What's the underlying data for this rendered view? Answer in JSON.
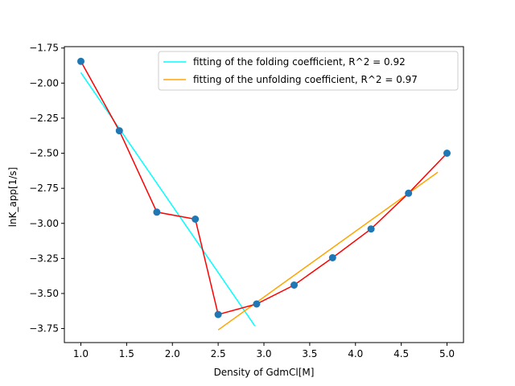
{
  "chart_data": {
    "type": "line",
    "xlabel": "Density of GdmCl[M]",
    "ylabel": "lnK_app[1/s]",
    "xlim": [
      0.82,
      5.18
    ],
    "ylim": [
      -3.85,
      -1.74
    ],
    "xticks": [
      1.0,
      1.5,
      2.0,
      2.5,
      3.0,
      3.5,
      4.0,
      4.5,
      5.0
    ],
    "xtick_labels": [
      "1.0",
      "1.5",
      "2.0",
      "2.5",
      "3.0",
      "3.5",
      "4.0",
      "4.5",
      "5.0"
    ],
    "yticks": [
      -1.75,
      -2.0,
      -2.25,
      -2.5,
      -2.75,
      -3.0,
      -3.25,
      -3.5,
      -3.75
    ],
    "ytick_labels": [
      "−1.75",
      "−2.00",
      "−2.25",
      "−2.50",
      "−2.75",
      "−3.00",
      "−3.25",
      "−3.50",
      "−3.75"
    ],
    "grid": false,
    "legend_position": "top-right",
    "series": [
      {
        "name": "",
        "kind": "line+markers",
        "color": "#ff0000",
        "marker_color": "#1f77b4",
        "x": [
          1.0,
          1.42,
          1.83,
          2.25,
          2.5,
          2.92,
          3.33,
          3.75,
          4.17,
          4.58,
          5.0
        ],
        "y": [
          -1.845,
          -2.34,
          -2.92,
          -2.97,
          -3.65,
          -3.575,
          -3.44,
          -3.245,
          -3.04,
          -2.785,
          -2.5
        ]
      },
      {
        "name": "fitting of the folding coefficient, R^2 = 0.92",
        "kind": "line",
        "color": "#00ffff",
        "x": [
          1.0,
          2.9
        ],
        "y": [
          -1.925,
          -3.73
        ]
      },
      {
        "name": "fitting of the unfolding coefficient, R^2 = 0.97",
        "kind": "line",
        "color": "#ffa500",
        "x": [
          2.5,
          4.9
        ],
        "y": [
          -3.76,
          -2.635
        ]
      }
    ]
  }
}
